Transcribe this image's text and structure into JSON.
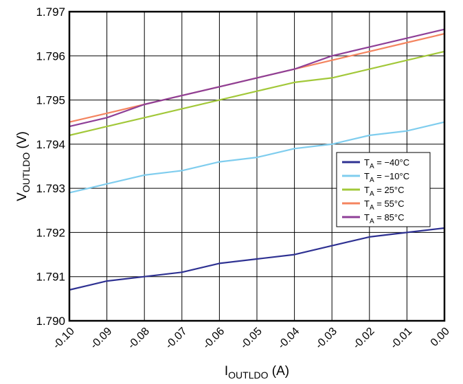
{
  "chart_data": {
    "type": "line",
    "xlabel": {
      "main": "I",
      "sub": "OUTLDO",
      "unit": " (A)"
    },
    "ylabel": {
      "main": "V",
      "sub": "OUTLDO",
      "unit": " (V)"
    },
    "xlim": [
      -0.1,
      0.0
    ],
    "ylim": [
      1.79,
      1.797
    ],
    "x_ticks": [
      "-0.10",
      "-0.09",
      "-0.08",
      "-0.07",
      "-0.06",
      "-0.05",
      "-0.04",
      "-0.03",
      "-0.02",
      "-0.01",
      "0.00"
    ],
    "y_ticks": [
      "1.797",
      "1.796",
      "1.795",
      "1.794",
      "1.793",
      "1.792",
      "1.791",
      "1.790"
    ],
    "grid": true,
    "legend_position": "right",
    "x": [
      -0.1,
      -0.09,
      -0.08,
      -0.07,
      -0.06,
      -0.05,
      -0.04,
      -0.03,
      -0.02,
      -0.01,
      0.0
    ],
    "series": [
      {
        "name": {
          "main": "T",
          "sub": "A",
          "rest": " = −40°C"
        },
        "color": "#2e3192",
        "values": [
          1.7907,
          1.7909,
          1.791,
          1.7911,
          1.7913,
          1.7914,
          1.7915,
          1.7917,
          1.7919,
          1.792,
          1.7921
        ]
      },
      {
        "name": {
          "main": "T",
          "sub": "A",
          "rest": " = −10°C"
        },
        "color": "#7fcdee",
        "values": [
          1.7929,
          1.7931,
          1.7933,
          1.7934,
          1.7936,
          1.7937,
          1.7939,
          1.794,
          1.7942,
          1.7943,
          1.7945
        ]
      },
      {
        "name": {
          "main": "T",
          "sub": "A",
          "rest": " = 25°C"
        },
        "color": "#a2c839",
        "values": [
          1.7942,
          1.7944,
          1.7946,
          1.7948,
          1.795,
          1.7952,
          1.7954,
          1.7955,
          1.7957,
          1.7959,
          1.7961
        ]
      },
      {
        "name": {
          "main": "T",
          "sub": "A",
          "rest": " = 55°C"
        },
        "color": "#f4845f",
        "values": [
          1.7945,
          1.7947,
          1.7949,
          1.7951,
          1.7953,
          1.7955,
          1.7957,
          1.7959,
          1.7961,
          1.7963,
          1.7965
        ]
      },
      {
        "name": {
          "main": "T",
          "sub": "A",
          "rest": " = 85°C"
        },
        "color": "#8e3f97",
        "values": [
          1.7944,
          1.7946,
          1.7949,
          1.7951,
          1.7953,
          1.7955,
          1.7957,
          1.796,
          1.7962,
          1.7964,
          1.7966
        ]
      }
    ]
  }
}
